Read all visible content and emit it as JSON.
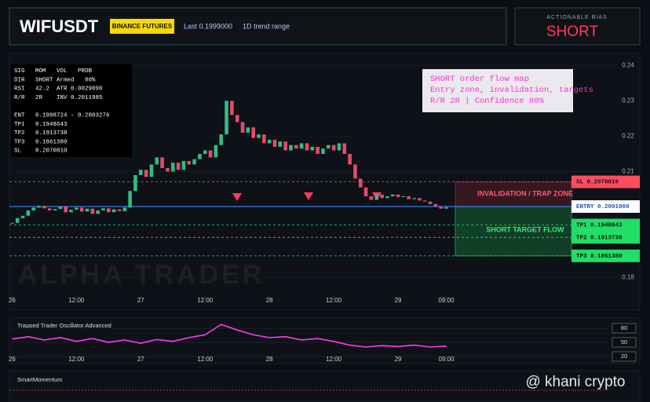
{
  "header": {
    "symbol": "WIFUSDT",
    "exchange": "BINANCE FUTURES",
    "last": "Last 0.1999000",
    "range": "1D trend range",
    "bias_label": "ACTIONABLE BIAS",
    "bias": "SHORT"
  },
  "chart_data": [
    {
      "type": "candlestick",
      "closes": [
        0.1955,
        0.1968,
        0.1975,
        0.199,
        0.1998,
        0.2003,
        0.1996,
        0.199,
        0.1994,
        0.2001,
        0.1985,
        0.1992,
        0.1998,
        0.1987,
        0.1995,
        0.198,
        0.199,
        0.1996,
        0.1985,
        0.1993,
        0.1988,
        0.1998,
        0.2045,
        0.209,
        0.2105,
        0.2085,
        0.212,
        0.214,
        0.211,
        0.21,
        0.2125,
        0.2105,
        0.213,
        0.212,
        0.2135,
        0.215,
        0.216,
        0.214,
        0.2175,
        0.2205,
        0.23,
        0.226,
        0.224,
        0.221,
        0.2225,
        0.2195,
        0.2205,
        0.218,
        0.219,
        0.217,
        0.2185,
        0.216,
        0.2175,
        0.2165,
        0.218,
        0.216,
        0.217,
        0.215,
        0.2165,
        0.2175,
        0.216,
        0.218,
        0.215,
        0.212,
        0.208,
        0.2055,
        0.203,
        0.202,
        0.2035,
        0.2025,
        0.203,
        0.2035,
        0.2028,
        0.203,
        0.2022,
        0.2025,
        0.2018,
        0.2015,
        0.2008,
        0.2002,
        0.1995,
        0.1999
      ],
      "color_up": "#2ebd85",
      "color_down": "#e84a6a",
      "xlim": [
        -0.5,
        112.7
      ],
      "xticks": [
        {
          "value": 0,
          "label": "26"
        },
        {
          "value": 12,
          "label": "12:00"
        },
        {
          "value": 24,
          "label": "27"
        },
        {
          "value": 36,
          "label": "12:00"
        },
        {
          "value": 48,
          "label": "28"
        },
        {
          "value": 60,
          "label": "12:00"
        },
        {
          "value": 72,
          "label": "29"
        },
        {
          "value": 81,
          "label": "09:00"
        }
      ],
      "ylim": [
        0.175,
        0.243
      ],
      "yticks": [
        0.24,
        0.23,
        0.22,
        0.21,
        0.18
      ],
      "levels": [
        {
          "value": 0.207081,
          "label": "SL 0.2070810",
          "color": "#ff4d5e"
        },
        {
          "value": 0.2001,
          "label": "ENTRY 0.2001000",
          "color": "#3d86ff"
        },
        {
          "value": 0.1948643,
          "label": "TP1 0.1948643",
          "color": "#22dd66"
        },
        {
          "value": 0.1913738,
          "label": "TP2 0.1913738",
          "color": "#22dd66"
        },
        {
          "value": 0.186138,
          "label": "TP3 0.1861380",
          "color": "#22dd66"
        }
      ],
      "zones": [
        {
          "from": 0.207081,
          "to": 0.2001,
          "label": "INVALIDATION / TRAP ZONE",
          "color": "#c8324a"
        },
        {
          "from": 0.2001,
          "to": 0.186138,
          "label": "SHORT TARGET FLOW",
          "color": "#22dd66"
        }
      ],
      "info_rows": [
        "SIG   MOM   VOL   PROB",
        "DIR   SHORT Armed   80%",
        "RSI   42.2  ATR 0.0029090",
        "R/R   2R    INV 0.2011985",
        "ENT   0.1998724 - 0.2003276",
        "TP1   0.1948643",
        "TP2   0.1913738",
        "TP3   0.1861380",
        "SL    0.2070810"
      ],
      "note": [
        "SHORT order flow map",
        "Entry zone, invalidation, targets",
        "R/R 2R | Confidence 80%"
      ],
      "watermark": "ALPHA TRADER"
    },
    {
      "type": "line",
      "title": "Trapped Trader Oscillator Advanced",
      "color": "#ff3df0",
      "x": [
        0,
        3,
        6,
        9,
        12,
        15,
        18,
        21,
        24,
        27,
        30,
        33,
        36,
        39,
        42,
        45,
        48,
        51,
        54,
        57,
        60,
        63,
        66,
        69,
        72,
        75,
        78,
        81
      ],
      "values": [
        57,
        62,
        55,
        60,
        52,
        58,
        50,
        55,
        48,
        56,
        52,
        60,
        66,
        88,
        76,
        66,
        60,
        62,
        55,
        58,
        52,
        44,
        40,
        43,
        41,
        44,
        40,
        42
      ],
      "xlim": [
        -0.5,
        112.7
      ],
      "ylim": [
        0,
        100
      ],
      "yticks": [
        80,
        50,
        20
      ],
      "xticks": [
        {
          "value": 0,
          "label": "26"
        },
        {
          "value": 12,
          "label": "12:00"
        },
        {
          "value": 24,
          "label": "27"
        },
        {
          "value": 36,
          "label": "12:00"
        },
        {
          "value": 48,
          "label": "28"
        },
        {
          "value": 60,
          "label": "12:00"
        },
        {
          "value": 72,
          "label": "29"
        },
        {
          "value": 81,
          "label": "09:00"
        }
      ]
    },
    {
      "type": "bar",
      "title": "SmartMomentum"
    }
  ],
  "footer": {
    "watermark": "@ khani crypto"
  }
}
